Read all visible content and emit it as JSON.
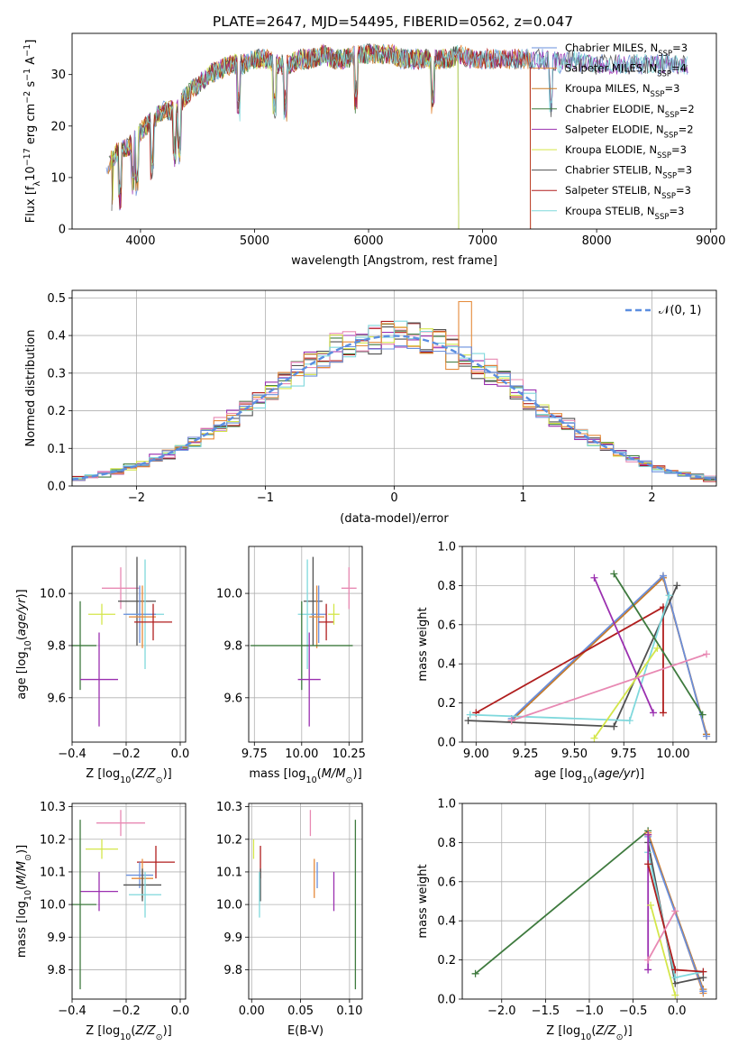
{
  "figure_title": "PLATE=2647, MJD=54495, FIBERID=0562, z=0.047",
  "model_colors": {
    "Chabrier MILES": "#6a8fdc",
    "Salpeter MILES": "#e58a3a",
    "Kroupa MILES": "#c87a26",
    "Chabrier ELODIE": "#3e7a3e",
    "Salpeter ELODIE": "#9b30b0",
    "Kroupa ELODIE": "#d4e64a",
    "Chabrier STELIB": "#505050",
    "Salpeter STELIB": "#b01e1e",
    "Kroupa STELIB": "#7fd8dc",
    "pink": "#e889b3",
    "gaussian": "#5b8ee0"
  },
  "chart_data": [
    {
      "id": "spectrum",
      "type": "line",
      "title": "PLATE=2647, MJD=54495, FIBERID=0562, z=0.047",
      "xlabel": "wavelength [Angstrom, rest frame]",
      "ylabel": "Flux [f_λ 10^-17 erg cm^-2 s^-1 A^-1]",
      "xlim": [
        3400,
        9050
      ],
      "ylim": [
        0,
        38
      ],
      "xticks": [
        4000,
        5000,
        6000,
        7000,
        8000,
        9000
      ],
      "yticks": [
        0,
        10,
        20,
        30
      ],
      "xtick_labels": [
        "4000",
        "5000",
        "6000",
        "7000",
        "8000",
        "9000"
      ],
      "ytick_labels": [
        "0",
        "10",
        "20",
        "30"
      ],
      "grid": false,
      "legend_position": "top-right",
      "legend": [
        {
          "label": "Chabrier MILES, N",
          "sub": "SSP",
          "suffix": "=3",
          "color": "#6a8fdc"
        },
        {
          "label": "Salpeter MILES, N",
          "sub": "SSP",
          "suffix": "=4",
          "color": "#e58a3a"
        },
        {
          "label": "Kroupa MILES, N",
          "sub": "SSP",
          "suffix": "=3",
          "color": "#c87a26"
        },
        {
          "label": "Chabrier ELODIE, N",
          "sub": "SSP",
          "suffix": "=2",
          "color": "#3e7a3e"
        },
        {
          "label": "Salpeter ELODIE, N",
          "sub": "SSP",
          "suffix": "=2",
          "color": "#9b30b0"
        },
        {
          "label": "Kroupa ELODIE, N",
          "sub": "SSP",
          "suffix": "=3",
          "color": "#d4e64a"
        },
        {
          "label": "Chabrier STELIB, N",
          "sub": "SSP",
          "suffix": "=3",
          "color": "#505050"
        },
        {
          "label": "Salpeter STELIB, N",
          "sub": "SSP",
          "suffix": "=3",
          "color": "#b01e1e"
        },
        {
          "label": "Kroupa STELIB, N",
          "sub": "SSP",
          "suffix": "=3",
          "color": "#7fd8dc"
        }
      ],
      "spectrum_envelope": {
        "x": [
          3700,
          3800,
          3900,
          4000,
          4100,
          4200,
          4300,
          4400,
          4500,
          4600,
          4700,
          4800,
          4900,
          5000,
          5100,
          5200,
          5300,
          5400,
          5500,
          5600,
          5700,
          5800,
          5900,
          6000,
          6100,
          6200,
          6300,
          6400,
          6500,
          6600,
          6700,
          6800,
          6900,
          7000,
          7100,
          7200,
          7300,
          7400,
          7500,
          7600,
          7700,
          7800,
          7900,
          8000,
          8100,
          8200,
          8300,
          8400,
          8500,
          8600,
          8700,
          8800
        ],
        "y": [
          12,
          15,
          16,
          19,
          21,
          23,
          23,
          26,
          28,
          30,
          31,
          32,
          32,
          33,
          33,
          32,
          32,
          33,
          33,
          34,
          33,
          33,
          34,
          34,
          34,
          34,
          33,
          33,
          33,
          33,
          33,
          34,
          33,
          33,
          33,
          33,
          33,
          33,
          33,
          33,
          32,
          33,
          32,
          32,
          32,
          32,
          32,
          32,
          32,
          32,
          32,
          32
        ]
      },
      "truncations": [
        {
          "model": "Kroupa ELODIE",
          "x": 6790
        },
        {
          "model": "Chabrier ELODIE",
          "x": 6790
        },
        {
          "model": "Salpeter MILES",
          "x": 7420
        },
        {
          "model": "Kroupa MILES",
          "x": 7420
        },
        {
          "model": "Salpeter STELIB",
          "x": 7420
        }
      ]
    },
    {
      "id": "residual-histogram",
      "type": "line",
      "xlabel": "(data-model)/error",
      "ylabel": "Normed distribution",
      "xlim": [
        -2.5,
        2.5
      ],
      "ylim": [
        0,
        0.52
      ],
      "xticks": [
        -2,
        -1,
        0,
        1,
        2
      ],
      "yticks": [
        0.0,
        0.1,
        0.2,
        0.3,
        0.4,
        0.5
      ],
      "xtick_labels": [
        "−2",
        "−1",
        "0",
        "1",
        "2"
      ],
      "ytick_labels": [
        "0.0",
        "0.1",
        "0.2",
        "0.3",
        "0.4",
        "0.5"
      ],
      "grid": true,
      "legend_position": "top-right",
      "legend": [
        {
          "label": "𝒩(0, 1)",
          "color": "#5b8ee0",
          "style": "dashed"
        }
      ],
      "bin_width": 0.1,
      "gaussian": {
        "mean": 0,
        "sigma": 1,
        "label": "𝒩(0, 1)"
      }
    },
    {
      "id": "age-vs-Z",
      "type": "scatter",
      "xlabel": "Z [log10(Z/Z⊙)]",
      "ylabel": "age [log10(age/yr)]",
      "xlim": [
        -0.4,
        0.02
      ],
      "ylim": [
        9.43,
        10.18
      ],
      "xticks": [
        -0.4,
        -0.2,
        0.0
      ],
      "yticks": [
        9.6,
        9.8,
        10.0
      ],
      "xtick_labels": [
        "−0.4",
        "−0.2",
        "0.0"
      ],
      "ytick_labels": [
        "9.6",
        "9.8",
        "10.0"
      ],
      "grid": true,
      "points": [
        {
          "color": "#e889b3",
          "x": -0.22,
          "y": 10.02,
          "xerr": 0.07,
          "yerr": 0.08
        },
        {
          "color": "#505050",
          "x": -0.16,
          "y": 9.97,
          "xerr": 0.07,
          "yerr": 0.17
        },
        {
          "color": "#7fd8dc",
          "x": -0.13,
          "y": 9.92,
          "xerr": 0.07,
          "yerr": 0.21
        },
        {
          "color": "#6a8fdc",
          "x": -0.15,
          "y": 9.92,
          "xerr": 0.06,
          "yerr": 0.11
        },
        {
          "color": "#e58a3a",
          "x": -0.14,
          "y": 9.91,
          "xerr": 0.05,
          "yerr": 0.12
        },
        {
          "color": "#b01e1e",
          "x": -0.1,
          "y": 9.89,
          "xerr": 0.07,
          "yerr": 0.07
        },
        {
          "color": "#d4e64a",
          "x": -0.29,
          "y": 9.92,
          "xerr": 0.05,
          "yerr": 0.04
        },
        {
          "color": "#3e7a3e",
          "x": -0.37,
          "y": 9.8,
          "xerr": 0.06,
          "yerr": 0.17
        },
        {
          "color": "#9b30b0",
          "x": -0.3,
          "y": 9.67,
          "xerr": 0.07,
          "yerr": 0.18
        }
      ]
    },
    {
      "id": "age-vs-mass",
      "type": "scatter",
      "xlabel": "mass [log10(M/M⊙)]",
      "xlim": [
        9.72,
        10.32
      ],
      "ylim": [
        9.43,
        10.18
      ],
      "xticks": [
        9.75,
        10.0,
        10.25
      ],
      "yticks": [
        9.6,
        9.8,
        10.0
      ],
      "xtick_labels": [
        "9.75",
        "10.00",
        "10.25"
      ],
      "ytick_labels": [
        "9.6",
        "9.8",
        "10.0"
      ],
      "grid": true,
      "points": [
        {
          "color": "#e889b3",
          "x": 10.25,
          "y": 10.02,
          "xerr": 0.04,
          "yerr": 0.08
        },
        {
          "color": "#505050",
          "x": 10.06,
          "y": 9.97,
          "xerr": 0.05,
          "yerr": 0.17
        },
        {
          "color": "#7fd8dc",
          "x": 10.03,
          "y": 9.92,
          "xerr": 0.05,
          "yerr": 0.21
        },
        {
          "color": "#6a8fdc",
          "x": 10.09,
          "y": 9.92,
          "xerr": 0.04,
          "yerr": 0.11
        },
        {
          "color": "#e58a3a",
          "x": 10.08,
          "y": 9.91,
          "xerr": 0.04,
          "yerr": 0.12
        },
        {
          "color": "#b01e1e",
          "x": 10.13,
          "y": 9.89,
          "xerr": 0.04,
          "yerr": 0.07
        },
        {
          "color": "#d4e64a",
          "x": 10.17,
          "y": 9.92,
          "xerr": 0.03,
          "yerr": 0.04
        },
        {
          "color": "#3e7a3e",
          "x": 10.0,
          "y": 9.8,
          "xerr": 0.27,
          "yerr": 0.17
        },
        {
          "color": "#9b30b0",
          "x": 10.04,
          "y": 9.67,
          "xerr": 0.06,
          "yerr": 0.18
        }
      ]
    },
    {
      "id": "mass-weight-vs-age",
      "type": "line",
      "xlabel": "age [log10(age/yr)]",
      "ylabel": "mass weight",
      "xlim": [
        8.93,
        10.22
      ],
      "ylim": [
        0,
        1.0
      ],
      "xticks": [
        9.0,
        9.25,
        9.5,
        9.75,
        10.0
      ],
      "yticks": [
        0.0,
        0.2,
        0.4,
        0.6,
        0.8,
        1.0
      ],
      "xtick_labels": [
        "9.00",
        "9.25",
        "9.50",
        "9.75",
        "10.00"
      ],
      "ytick_labels": [
        "0.0",
        "0.2",
        "0.4",
        "0.6",
        "0.8",
        "1.0"
      ],
      "grid": true,
      "series": [
        {
          "color": "#e58a3a",
          "x": [
            9.18,
            9.95,
            10.17
          ],
          "y": [
            0.11,
            0.85,
            0.03
          ]
        },
        {
          "color": "#c87a26",
          "x": [
            9.18,
            9.95,
            10.17
          ],
          "y": [
            0.11,
            0.84,
            0.04
          ]
        },
        {
          "color": "#6a8fdc",
          "x": [
            9.18,
            9.95,
            10.17
          ],
          "y": [
            0.12,
            0.85,
            0.03
          ]
        },
        {
          "color": "#b01e1e",
          "x": [
            9.0,
            9.95,
            9.95
          ],
          "y": [
            0.15,
            0.69,
            0.15
          ]
        },
        {
          "color": "#505050",
          "x": [
            8.96,
            9.7,
            10.02
          ],
          "y": [
            0.11,
            0.08,
            0.8
          ]
        },
        {
          "color": "#7fd8dc",
          "x": [
            8.97,
            9.78,
            9.98
          ],
          "y": [
            0.14,
            0.11,
            0.75
          ]
        },
        {
          "color": "#9b30b0",
          "x": [
            9.6,
            9.9
          ],
          "y": [
            0.84,
            0.15
          ]
        },
        {
          "color": "#3e7a3e",
          "x": [
            9.7,
            10.15
          ],
          "y": [
            0.86,
            0.14
          ]
        },
        {
          "color": "#d4e64a",
          "x": [
            9.6,
            9.92
          ],
          "y": [
            0.02,
            0.48
          ]
        },
        {
          "color": "#e889b3",
          "x": [
            9.18,
            10.17
          ],
          "y": [
            0.11,
            0.45
          ]
        }
      ]
    },
    {
      "id": "mass-vs-Z",
      "type": "scatter",
      "xlabel": "Z [log10(Z/Z⊙)]",
      "ylabel": "mass [log10(M/M⊙)]",
      "xlim": [
        -0.4,
        0.02
      ],
      "ylim": [
        9.71,
        10.31
      ],
      "xticks": [
        -0.4,
        -0.2,
        0.0
      ],
      "yticks": [
        9.8,
        9.9,
        10.0,
        10.1,
        10.2,
        10.3
      ],
      "xtick_labels": [
        "−0.4",
        "−0.2",
        "0.0"
      ],
      "ytick_labels": [
        "9.8",
        "9.9",
        "10.0",
        "10.1",
        "10.2",
        "10.3"
      ],
      "grid": true,
      "points": [
        {
          "color": "#e889b3",
          "x": -0.22,
          "y": 10.25,
          "xerr": 0.09,
          "yerr": 0.04
        },
        {
          "color": "#d4e64a",
          "x": -0.29,
          "y": 10.17,
          "xerr": 0.06,
          "yerr": 0.03
        },
        {
          "color": "#b01e1e",
          "x": -0.09,
          "y": 10.13,
          "xerr": 0.07,
          "yerr": 0.05
        },
        {
          "color": "#6a8fdc",
          "x": -0.15,
          "y": 10.09,
          "xerr": 0.05,
          "yerr": 0.04
        },
        {
          "color": "#e58a3a",
          "x": -0.14,
          "y": 10.08,
          "xerr": 0.04,
          "yerr": 0.06
        },
        {
          "color": "#505050",
          "x": -0.14,
          "y": 10.06,
          "xerr": 0.07,
          "yerr": 0.05
        },
        {
          "color": "#9b30b0",
          "x": -0.3,
          "y": 10.04,
          "xerr": 0.07,
          "yerr": 0.06
        },
        {
          "color": "#7fd8dc",
          "x": -0.13,
          "y": 10.03,
          "xerr": 0.06,
          "yerr": 0.07
        },
        {
          "color": "#3e7a3e",
          "x": -0.37,
          "y": 10.0,
          "xerr": 0.06,
          "yerr": 0.26
        }
      ]
    },
    {
      "id": "mass-vs-ebv",
      "type": "scatter",
      "xlabel": "E(B-V)",
      "xlim": [
        -0.003,
        0.113
      ],
      "ylim": [
        9.71,
        10.31
      ],
      "xticks": [
        0.0,
        0.05,
        0.1
      ],
      "yticks": [
        9.8,
        9.9,
        10.0,
        10.1,
        10.2,
        10.3
      ],
      "xtick_labels": [
        "0.00",
        "0.05",
        "0.10"
      ],
      "ytick_labels": [
        "9.8",
        "9.9",
        "10.0",
        "10.1",
        "10.2",
        "10.3"
      ],
      "grid": true,
      "points": [
        {
          "color": "#e889b3",
          "x": 0.06,
          "y": 10.25,
          "xerr": 0,
          "yerr": 0.04
        },
        {
          "color": "#d4e64a",
          "x": 0.002,
          "y": 10.17,
          "xerr": 0,
          "yerr": 0.03
        },
        {
          "color": "#b01e1e",
          "x": 0.009,
          "y": 10.13,
          "xerr": 0,
          "yerr": 0.05
        },
        {
          "color": "#6a8fdc",
          "x": 0.067,
          "y": 10.09,
          "xerr": 0,
          "yerr": 0.04
        },
        {
          "color": "#e58a3a",
          "x": 0.064,
          "y": 10.08,
          "xerr": 0,
          "yerr": 0.06
        },
        {
          "color": "#505050",
          "x": 0.009,
          "y": 10.06,
          "xerr": 0,
          "yerr": 0.05
        },
        {
          "color": "#9b30b0",
          "x": 0.084,
          "y": 10.04,
          "xerr": 0,
          "yerr": 0.06
        },
        {
          "color": "#7fd8dc",
          "x": 0.008,
          "y": 10.03,
          "xerr": 0,
          "yerr": 0.07
        },
        {
          "color": "#3e7a3e",
          "x": 0.106,
          "y": 10.0,
          "xerr": 0,
          "yerr": 0.26
        }
      ]
    },
    {
      "id": "mass-weight-vs-Z",
      "type": "line",
      "xlabel": "Z [log10(Z/Z⊙)]",
      "ylabel": "mass weight",
      "xlim": [
        -2.45,
        0.45
      ],
      "ylim": [
        0,
        1.0
      ],
      "xticks": [
        -2.0,
        -1.5,
        -1.0,
        -0.5,
        0.0
      ],
      "yticks": [
        0.0,
        0.2,
        0.4,
        0.6,
        0.8,
        1.0
      ],
      "xtick_labels": [
        "−2.0",
        "−1.5",
        "−1.0",
        "−0.5",
        "0.0"
      ],
      "ytick_labels": [
        "0.0",
        "0.2",
        "0.4",
        "0.6",
        "0.8",
        "1.0"
      ],
      "grid": true,
      "series": [
        {
          "color": "#3e7a3e",
          "x": [
            -2.3,
            -0.33
          ],
          "y": [
            0.13,
            0.86
          ]
        },
        {
          "color": "#e58a3a",
          "x": [
            -0.33,
            0.3
          ],
          "y": [
            0.85,
            0.03
          ]
        },
        {
          "color": "#c87a26",
          "x": [
            -0.33,
            0.3
          ],
          "y": [
            0.84,
            0.05
          ]
        },
        {
          "color": "#6a8fdc",
          "x": [
            -0.33,
            0.3
          ],
          "y": [
            0.83,
            0.04
          ]
        },
        {
          "color": "#505050",
          "x": [
            -0.33,
            -0.02,
            0.3
          ],
          "y": [
            0.8,
            0.08,
            0.11
          ]
        },
        {
          "color": "#7fd8dc",
          "x": [
            -0.33,
            -0.02,
            0.3
          ],
          "y": [
            0.75,
            0.11,
            0.14
          ]
        },
        {
          "color": "#9b30b0",
          "x": [
            -0.33,
            -0.33
          ],
          "y": [
            0.84,
            0.15
          ]
        },
        {
          "color": "#b01e1e",
          "x": [
            -0.33,
            -0.02,
            0.3
          ],
          "y": [
            0.69,
            0.15,
            0.14
          ]
        },
        {
          "color": "#d4e64a",
          "x": [
            -0.3,
            -0.02
          ],
          "y": [
            0.48,
            0.02
          ]
        },
        {
          "color": "#e889b3",
          "x": [
            -0.33,
            -0.02
          ],
          "y": [
            0.2,
            0.45
          ]
        }
      ]
    }
  ]
}
